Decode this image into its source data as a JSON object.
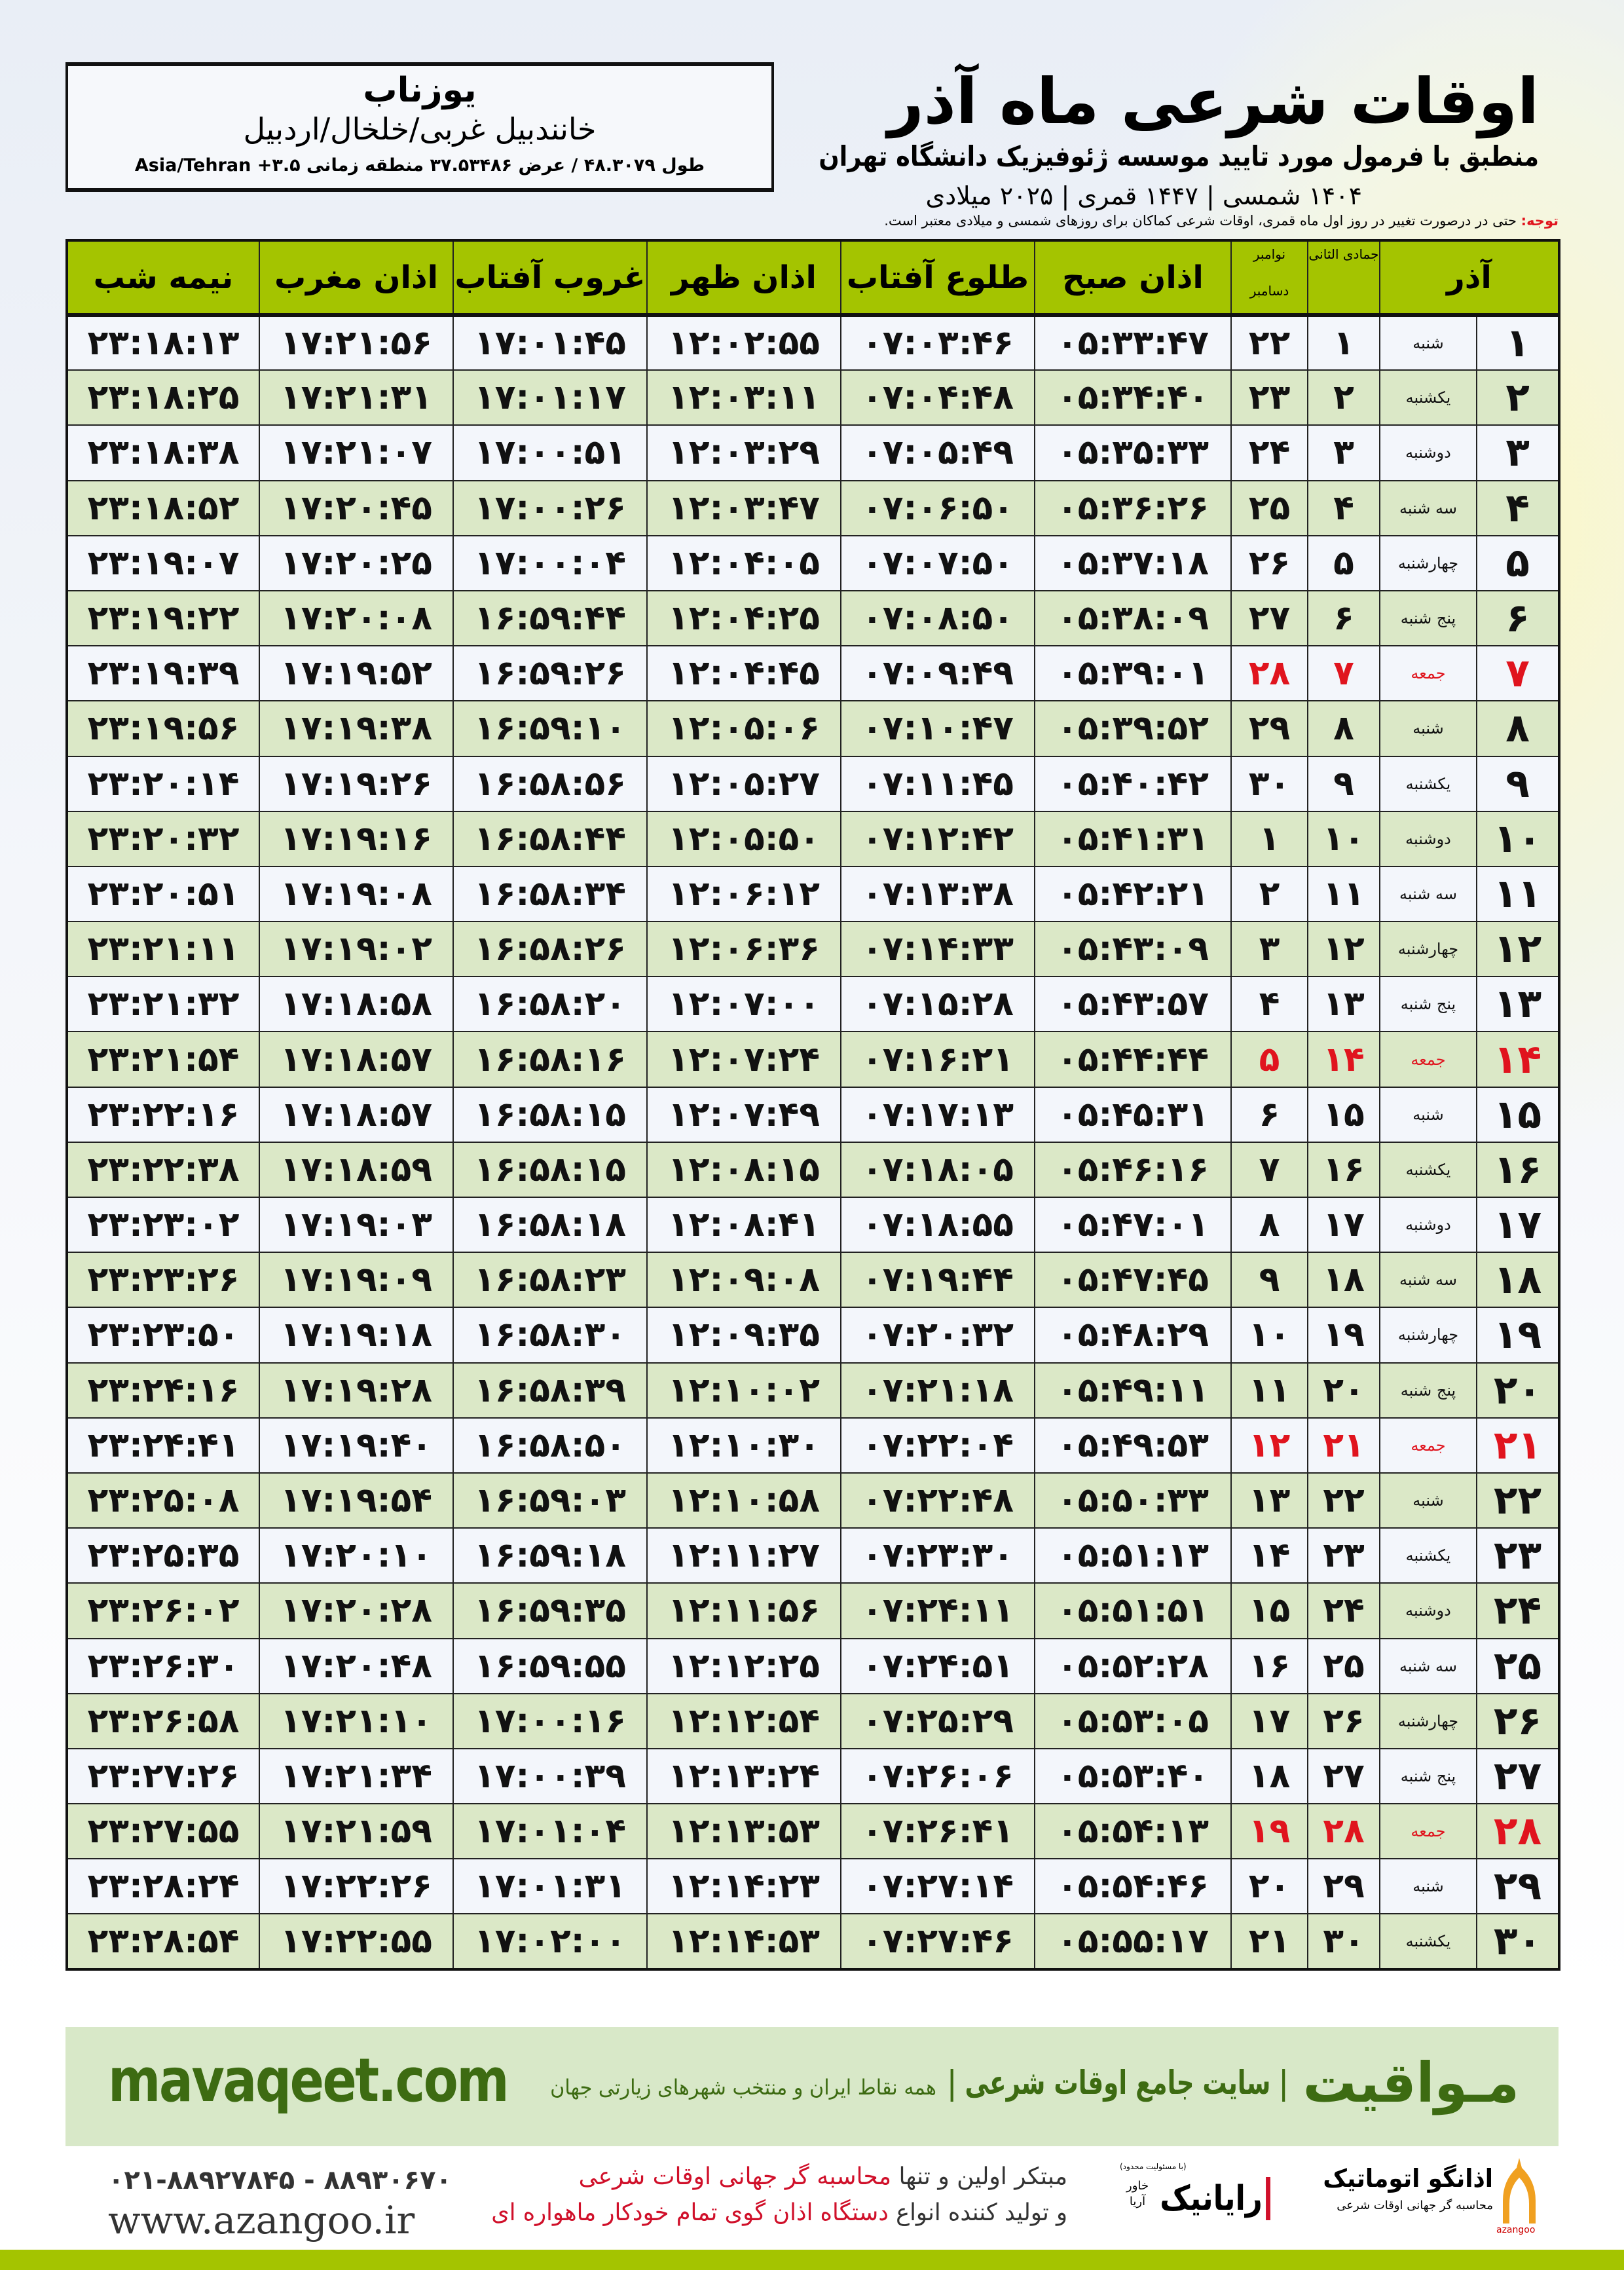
{
  "header": {
    "title": "اوقات شرعی ماه آذر",
    "subtitle": "منطبق با فرمول مورد تایید موسسه ژئوفیزیک دانشگاه تهران",
    "years": "۱۴۰۴ شمسی | ۱۴۴۷ قمری | ۲۰۲۵ میلادی"
  },
  "location": {
    "name": "یوزناب",
    "region": "خانندبیل غربی/خلخال/اردبیل",
    "coords": "طول ۴۸.۳۰۷۹ / عرض ۳۷.۵۳۴۸۶ منطقه زمانی ۳.۵+ Asia/Tehran"
  },
  "note": {
    "label": "توجه:",
    "text": " حتی در درصورت تغییر در روز اول ماه قمری، اوقات شرعی کماکان برای روزهای شمسی و میلادی معتبر است."
  },
  "colors": {
    "header_green": "#a4c400",
    "row_green": "#dbe8c7",
    "holiday_red": "#e0141e",
    "brand_green": "#3d6b12"
  },
  "table": {
    "columns": {
      "azar": "آذر",
      "qamari": "جمادی الثانی",
      "nov": "نوامبر",
      "dec": "دسامبر",
      "fajr": "اذان صبح",
      "sunrise": "طلوع آفتاب",
      "dhuhr": "اذان ظهر",
      "sunset": "غروب آفتاب",
      "maghrib": "اذان مغرب",
      "midnight": "نیمه شب"
    },
    "rows": [
      {
        "d": "۱",
        "w": "شنبه",
        "q": "۱",
        "m": "۲۲",
        "t": [
          "۰۵:۳۳:۴۷",
          "۰۷:۰۳:۴۶",
          "۱۲:۰۲:۵۵",
          "۱۷:۰۱:۴۵",
          "۱۷:۲۱:۵۶",
          "۲۳:۱۸:۱۳"
        ]
      },
      {
        "d": "۲",
        "w": "یکشنبه",
        "q": "۲",
        "m": "۲۳",
        "t": [
          "۰۵:۳۴:۴۰",
          "۰۷:۰۴:۴۸",
          "۱۲:۰۳:۱۱",
          "۱۷:۰۱:۱۷",
          "۱۷:۲۱:۳۱",
          "۲۳:۱۸:۲۵"
        ]
      },
      {
        "d": "۳",
        "w": "دوشنبه",
        "q": "۳",
        "m": "۲۴",
        "t": [
          "۰۵:۳۵:۳۳",
          "۰۷:۰۵:۴۹",
          "۱۲:۰۳:۲۹",
          "۱۷:۰۰:۵۱",
          "۱۷:۲۱:۰۷",
          "۲۳:۱۸:۳۸"
        ]
      },
      {
        "d": "۴",
        "w": "سه شنبه",
        "q": "۴",
        "m": "۲۵",
        "t": [
          "۰۵:۳۶:۲۶",
          "۰۷:۰۶:۵۰",
          "۱۲:۰۳:۴۷",
          "۱۷:۰۰:۲۶",
          "۱۷:۲۰:۴۵",
          "۲۳:۱۸:۵۲"
        ]
      },
      {
        "d": "۵",
        "w": "چهارشنبه",
        "q": "۵",
        "m": "۲۶",
        "t": [
          "۰۵:۳۷:۱۸",
          "۰۷:۰۷:۵۰",
          "۱۲:۰۴:۰۵",
          "۱۷:۰۰:۰۴",
          "۱۷:۲۰:۲۵",
          "۲۳:۱۹:۰۷"
        ]
      },
      {
        "d": "۶",
        "w": "پنج شنبه",
        "q": "۶",
        "m": "۲۷",
        "t": [
          "۰۵:۳۸:۰۹",
          "۰۷:۰۸:۵۰",
          "۱۲:۰۴:۲۵",
          "۱۶:۵۹:۴۴",
          "۱۷:۲۰:۰۸",
          "۲۳:۱۹:۲۲"
        ]
      },
      {
        "d": "۷",
        "w": "جمعه",
        "q": "۷",
        "m": "۲۸",
        "holiday": true,
        "t": [
          "۰۵:۳۹:۰۱",
          "۰۷:۰۹:۴۹",
          "۱۲:۰۴:۴۵",
          "۱۶:۵۹:۲۶",
          "۱۷:۱۹:۵۲",
          "۲۳:۱۹:۳۹"
        ]
      },
      {
        "d": "۸",
        "w": "شنبه",
        "q": "۸",
        "m": "۲۹",
        "t": [
          "۰۵:۳۹:۵۲",
          "۰۷:۱۰:۴۷",
          "۱۲:۰۵:۰۶",
          "۱۶:۵۹:۱۰",
          "۱۷:۱۹:۳۸",
          "۲۳:۱۹:۵۶"
        ]
      },
      {
        "d": "۹",
        "w": "یکشنبه",
        "q": "۹",
        "m": "۳۰",
        "t": [
          "۰۵:۴۰:۴۲",
          "۰۷:۱۱:۴۵",
          "۱۲:۰۵:۲۷",
          "۱۶:۵۸:۵۶",
          "۱۷:۱۹:۲۶",
          "۲۳:۲۰:۱۴"
        ]
      },
      {
        "d": "۱۰",
        "w": "دوشنبه",
        "q": "۱۰",
        "m": "۱",
        "t": [
          "۰۵:۴۱:۳۱",
          "۰۷:۱۲:۴۲",
          "۱۲:۰۵:۵۰",
          "۱۶:۵۸:۴۴",
          "۱۷:۱۹:۱۶",
          "۲۳:۲۰:۳۲"
        ]
      },
      {
        "d": "۱۱",
        "w": "سه شنبه",
        "q": "۱۱",
        "m": "۲",
        "t": [
          "۰۵:۴۲:۲۱",
          "۰۷:۱۳:۳۸",
          "۱۲:۰۶:۱۲",
          "۱۶:۵۸:۳۴",
          "۱۷:۱۹:۰۸",
          "۲۳:۲۰:۵۱"
        ]
      },
      {
        "d": "۱۲",
        "w": "چهارشنبه",
        "q": "۱۲",
        "m": "۳",
        "t": [
          "۰۵:۴۳:۰۹",
          "۰۷:۱۴:۳۳",
          "۱۲:۰۶:۳۶",
          "۱۶:۵۸:۲۶",
          "۱۷:۱۹:۰۲",
          "۲۳:۲۱:۱۱"
        ]
      },
      {
        "d": "۱۳",
        "w": "پنج شنبه",
        "q": "۱۳",
        "m": "۴",
        "t": [
          "۰۵:۴۳:۵۷",
          "۰۷:۱۵:۲۸",
          "۱۲:۰۷:۰۰",
          "۱۶:۵۸:۲۰",
          "۱۷:۱۸:۵۸",
          "۲۳:۲۱:۳۲"
        ]
      },
      {
        "d": "۱۴",
        "w": "جمعه",
        "q": "۱۴",
        "m": "۵",
        "holiday": true,
        "t": [
          "۰۵:۴۴:۴۴",
          "۰۷:۱۶:۲۱",
          "۱۲:۰۷:۲۴",
          "۱۶:۵۸:۱۶",
          "۱۷:۱۸:۵۷",
          "۲۳:۲۱:۵۴"
        ]
      },
      {
        "d": "۱۵",
        "w": "شنبه",
        "q": "۱۵",
        "m": "۶",
        "t": [
          "۰۵:۴۵:۳۱",
          "۰۷:۱۷:۱۳",
          "۱۲:۰۷:۴۹",
          "۱۶:۵۸:۱۵",
          "۱۷:۱۸:۵۷",
          "۲۳:۲۲:۱۶"
        ]
      },
      {
        "d": "۱۶",
        "w": "یکشنبه",
        "q": "۱۶",
        "m": "۷",
        "t": [
          "۰۵:۴۶:۱۶",
          "۰۷:۱۸:۰۵",
          "۱۲:۰۸:۱۵",
          "۱۶:۵۸:۱۵",
          "۱۷:۱۸:۵۹",
          "۲۳:۲۲:۳۸"
        ]
      },
      {
        "d": "۱۷",
        "w": "دوشنبه",
        "q": "۱۷",
        "m": "۸",
        "t": [
          "۰۵:۴۷:۰۱",
          "۰۷:۱۸:۵۵",
          "۱۲:۰۸:۴۱",
          "۱۶:۵۸:۱۸",
          "۱۷:۱۹:۰۳",
          "۲۳:۲۳:۰۲"
        ]
      },
      {
        "d": "۱۸",
        "w": "سه شنبه",
        "q": "۱۸",
        "m": "۹",
        "t": [
          "۰۵:۴۷:۴۵",
          "۰۷:۱۹:۴۴",
          "۱۲:۰۹:۰۸",
          "۱۶:۵۸:۲۳",
          "۱۷:۱۹:۰۹",
          "۲۳:۲۳:۲۶"
        ]
      },
      {
        "d": "۱۹",
        "w": "چهارشنبه",
        "q": "۱۹",
        "m": "۱۰",
        "t": [
          "۰۵:۴۸:۲۹",
          "۰۷:۲۰:۳۲",
          "۱۲:۰۹:۳۵",
          "۱۶:۵۸:۳۰",
          "۱۷:۱۹:۱۸",
          "۲۳:۲۳:۵۰"
        ]
      },
      {
        "d": "۲۰",
        "w": "پنج شنبه",
        "q": "۲۰",
        "m": "۱۱",
        "t": [
          "۰۵:۴۹:۱۱",
          "۰۷:۲۱:۱۸",
          "۱۲:۱۰:۰۲",
          "۱۶:۵۸:۳۹",
          "۱۷:۱۹:۲۸",
          "۲۳:۲۴:۱۶"
        ]
      },
      {
        "d": "۲۱",
        "w": "جمعه",
        "q": "۲۱",
        "m": "۱۲",
        "holiday": true,
        "t": [
          "۰۵:۴۹:۵۳",
          "۰۷:۲۲:۰۴",
          "۱۲:۱۰:۳۰",
          "۱۶:۵۸:۵۰",
          "۱۷:۱۹:۴۰",
          "۲۳:۲۴:۴۱"
        ]
      },
      {
        "d": "۲۲",
        "w": "شنبه",
        "q": "۲۲",
        "m": "۱۳",
        "t": [
          "۰۵:۵۰:۳۳",
          "۰۷:۲۲:۴۸",
          "۱۲:۱۰:۵۸",
          "۱۶:۵۹:۰۳",
          "۱۷:۱۹:۵۴",
          "۲۳:۲۵:۰۸"
        ]
      },
      {
        "d": "۲۳",
        "w": "یکشنبه",
        "q": "۲۳",
        "m": "۱۴",
        "t": [
          "۰۵:۵۱:۱۳",
          "۰۷:۲۳:۳۰",
          "۱۲:۱۱:۲۷",
          "۱۶:۵۹:۱۸",
          "۱۷:۲۰:۱۰",
          "۲۳:۲۵:۳۵"
        ]
      },
      {
        "d": "۲۴",
        "w": "دوشنبه",
        "q": "۲۴",
        "m": "۱۵",
        "t": [
          "۰۵:۵۱:۵۱",
          "۰۷:۲۴:۱۱",
          "۱۲:۱۱:۵۶",
          "۱۶:۵۹:۳۵",
          "۱۷:۲۰:۲۸",
          "۲۳:۲۶:۰۲"
        ]
      },
      {
        "d": "۲۵",
        "w": "سه شنبه",
        "q": "۲۵",
        "m": "۱۶",
        "t": [
          "۰۵:۵۲:۲۸",
          "۰۷:۲۴:۵۱",
          "۱۲:۱۲:۲۵",
          "۱۶:۵۹:۵۵",
          "۱۷:۲۰:۴۸",
          "۲۳:۲۶:۳۰"
        ]
      },
      {
        "d": "۲۶",
        "w": "چهارشنبه",
        "q": "۲۶",
        "m": "۱۷",
        "t": [
          "۰۵:۵۳:۰۵",
          "۰۷:۲۵:۲۹",
          "۱۲:۱۲:۵۴",
          "۱۷:۰۰:۱۶",
          "۱۷:۲۱:۱۰",
          "۲۳:۲۶:۵۸"
        ]
      },
      {
        "d": "۲۷",
        "w": "پنج شنبه",
        "q": "۲۷",
        "m": "۱۸",
        "t": [
          "۰۵:۵۳:۴۰",
          "۰۷:۲۶:۰۶",
          "۱۲:۱۳:۲۴",
          "۱۷:۰۰:۳۹",
          "۱۷:۲۱:۳۴",
          "۲۳:۲۷:۲۶"
        ]
      },
      {
        "d": "۲۸",
        "w": "جمعه",
        "q": "۲۸",
        "m": "۱۹",
        "holiday": true,
        "t": [
          "۰۵:۵۴:۱۳",
          "۰۷:۲۶:۴۱",
          "۱۲:۱۳:۵۳",
          "۱۷:۰۱:۰۴",
          "۱۷:۲۱:۵۹",
          "۲۳:۲۷:۵۵"
        ]
      },
      {
        "d": "۲۹",
        "w": "شنبه",
        "q": "۲۹",
        "m": "۲۰",
        "t": [
          "۰۵:۵۴:۴۶",
          "۰۷:۲۷:۱۴",
          "۱۲:۱۴:۲۳",
          "۱۷:۰۱:۳۱",
          "۱۷:۲۲:۲۶",
          "۲۳:۲۸:۲۴"
        ]
      },
      {
        "d": "۳۰",
        "w": "یکشنبه",
        "q": "۳۰",
        "m": "۲۱",
        "t": [
          "۰۵:۵۵:۱۷",
          "۰۷:۲۷:۴۶",
          "۱۲:۱۴:۵۳",
          "۱۷:۰۲:۰۰",
          "۱۷:۲۲:۵۵",
          "۲۳:۲۸:۵۴"
        ]
      }
    ]
  },
  "footer": {
    "brand": "مـواقیت",
    "slogan": "| سایت جامع اوقات شرعی |",
    "slogan_sub": "همه نقاط ایران و منتخب شهرهای زیارتی جهان",
    "site": "mavaqeet.com",
    "promo_line1_a": "مبتکر اولین و تنها ",
    "promo_line1_b": "محاسبه گر جهانی اوقات شرعی",
    "promo_line2_a": "و تولید کننده انواع ",
    "promo_line2_b": "دستگاه اذان گوی تمام خودکار ماهواره ای",
    "phones": "۰۲۱-۸۸۹۲۷۸۴۵ - ۸۸۹۳۰۶۷۰",
    "web": "www.azangoo.ir",
    "logo_azangoo": "اذانگو اتوماتیک",
    "logo_azangoo_sub": "محاسبه گر جهانی اوقات شرعی",
    "logo_azangoo_en": "azangoo",
    "logo_raianik": "رایانیک",
    "logo_raianik_sub": "خاور آریا",
    "logo_raianik_top": "(با مسئولیت محدود)"
  }
}
